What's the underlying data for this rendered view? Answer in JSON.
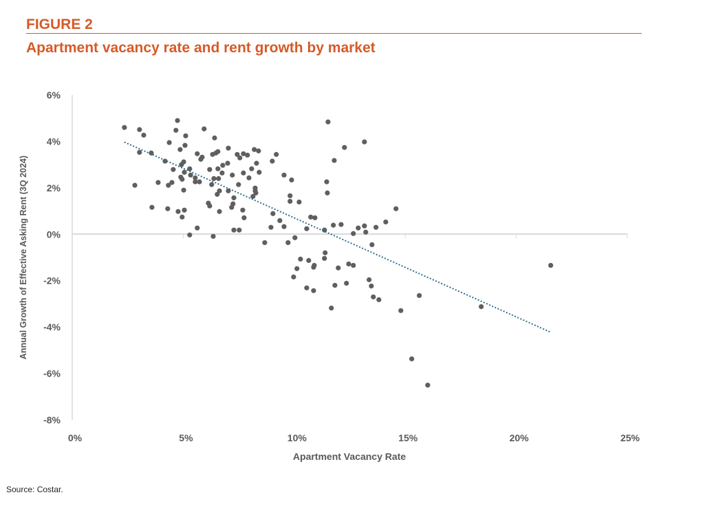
{
  "header": {
    "figure_label": "FIGURE 2",
    "title": "Apartment vacancy rate and rent growth by market",
    "accent_color": "#d65a28"
  },
  "source": "Source: Costar.",
  "chart_data": {
    "type": "scatter",
    "title": "",
    "xlabel": "Apartment Vacancy Rate",
    "ylabel": "Annual Growth of Effective Asking Rent (3Q 2024)",
    "xlim": [
      0,
      25
    ],
    "ylim": [
      -8,
      6
    ],
    "x_ticks": [
      "0%",
      "5%",
      "10%",
      "15%",
      "20%",
      "25%"
    ],
    "y_ticks": [
      "6%",
      "4%",
      "2%",
      "0%",
      "-2%",
      "-4%",
      "-6%",
      "-8%"
    ],
    "units": "percent",
    "grid": false,
    "legend": "none",
    "marker_color": "#5f5f5f",
    "trendline": {
      "type": "linear",
      "style": "dotted",
      "color": "#2e6e8e"
    },
    "points": [
      [
        2.35,
        4.6
      ],
      [
        3.03,
        4.51
      ],
      [
        3.22,
        4.27
      ],
      [
        4.74,
        4.9
      ],
      [
        4.67,
        4.48
      ],
      [
        5.11,
        4.24
      ],
      [
        5.94,
        4.54
      ],
      [
        6.41,
        4.15
      ],
      [
        4.37,
        3.95
      ],
      [
        5.08,
        3.83
      ],
      [
        4.86,
        3.65
      ],
      [
        3.03,
        3.53
      ],
      [
        3.56,
        3.5
      ],
      [
        4.18,
        3.15
      ],
      [
        5.02,
        3.12
      ],
      [
        4.92,
        3.0
      ],
      [
        5.63,
        3.47
      ],
      [
        5.85,
        3.32
      ],
      [
        5.79,
        3.23
      ],
      [
        6.32,
        3.44
      ],
      [
        6.47,
        3.5
      ],
      [
        6.56,
        3.56
      ],
      [
        6.19,
        2.79
      ],
      [
        6.56,
        2.82
      ],
      [
        5.29,
        2.82
      ],
      [
        4.55,
        2.79
      ],
      [
        5.05,
        2.67
      ],
      [
        4.89,
        2.46
      ],
      [
        4.95,
        2.37
      ],
      [
        5.33,
        2.55
      ],
      [
        5.54,
        2.43
      ],
      [
        5.54,
        2.26
      ],
      [
        5.73,
        2.26
      ],
      [
        6.38,
        2.4
      ],
      [
        6.59,
        2.4
      ],
      [
        6.28,
        2.14
      ],
      [
        2.82,
        2.11
      ],
      [
        3.87,
        2.23
      ],
      [
        4.33,
        2.11
      ],
      [
        4.49,
        2.23
      ],
      [
        5.02,
        1.9
      ],
      [
        6.53,
        1.72
      ],
      [
        6.63,
        1.87
      ],
      [
        3.59,
        1.16
      ],
      [
        4.3,
        1.1
      ],
      [
        4.77,
        0.98
      ],
      [
        5.05,
        1.04
      ],
      [
        4.95,
        0.74
      ],
      [
        6.13,
        1.34
      ],
      [
        6.19,
        1.22
      ],
      [
        6.63,
        0.98
      ],
      [
        5.63,
        0.27
      ],
      [
        5.29,
        -0.03
      ],
      [
        6.35,
        -0.09
      ],
      [
        6.75,
        2.64
      ],
      [
        6.78,
        2.97
      ],
      [
        7.0,
        3.06
      ],
      [
        7.03,
        3.71
      ],
      [
        7.43,
        3.44
      ],
      [
        7.55,
        3.29
      ],
      [
        7.71,
        3.47
      ],
      [
        7.89,
        3.41
      ],
      [
        8.2,
        3.65
      ],
      [
        8.39,
        3.59
      ],
      [
        9.19,
        3.44
      ],
      [
        9.01,
        3.15
      ],
      [
        7.21,
        2.55
      ],
      [
        7.71,
        2.64
      ],
      [
        8.08,
        2.82
      ],
      [
        8.3,
        3.06
      ],
      [
        8.42,
        2.67
      ],
      [
        7.96,
        2.43
      ],
      [
        7.49,
        2.14
      ],
      [
        9.54,
        2.55
      ],
      [
        9.88,
        2.34
      ],
      [
        8.24,
        1.99
      ],
      [
        8.24,
        1.87
      ],
      [
        8.27,
        1.78
      ],
      [
        7.03,
        1.87
      ],
      [
        7.28,
        1.57
      ],
      [
        7.24,
        1.31
      ],
      [
        7.18,
        1.16
      ],
      [
        8.14,
        1.63
      ],
      [
        7.68,
        1.04
      ],
      [
        7.74,
        0.71
      ],
      [
        9.81,
        1.66
      ],
      [
        9.81,
        1.42
      ],
      [
        10.22,
        1.39
      ],
      [
        9.04,
        0.89
      ],
      [
        9.35,
        0.59
      ],
      [
        9.54,
        0.33
      ],
      [
        8.95,
        0.3
      ],
      [
        10.74,
        0.74
      ],
      [
        10.93,
        0.71
      ],
      [
        10.56,
        0.24
      ],
      [
        7.28,
        0.18
      ],
      [
        7.52,
        0.18
      ],
      [
        8.67,
        -0.36
      ],
      [
        9.72,
        -0.36
      ],
      [
        10.03,
        -0.15
      ],
      [
        11.52,
        4.84
      ],
      [
        13.16,
        3.98
      ],
      [
        12.26,
        3.74
      ],
      [
        11.8,
        3.18
      ],
      [
        11.46,
        2.26
      ],
      [
        11.49,
        1.78
      ],
      [
        14.58,
        1.1
      ],
      [
        11.36,
        0.18
      ],
      [
        11.76,
        0.39
      ],
      [
        12.11,
        0.42
      ],
      [
        12.88,
        0.27
      ],
      [
        13.16,
        0.36
      ],
      [
        13.22,
        0.09
      ],
      [
        13.68,
        0.3
      ],
      [
        14.12,
        0.53
      ],
      [
        12.66,
        0.03
      ],
      [
        13.5,
        -0.45
      ],
      [
        11.39,
        -0.8
      ],
      [
        11.36,
        -1.04
      ],
      [
        10.28,
        -1.07
      ],
      [
        10.65,
        -1.13
      ],
      [
        10.9,
        -1.34
      ],
      [
        10.87,
        -1.42
      ],
      [
        10.12,
        -1.48
      ],
      [
        11.98,
        -1.45
      ],
      [
        12.45,
        -1.28
      ],
      [
        12.66,
        -1.34
      ],
      [
        9.97,
        -1.84
      ],
      [
        13.37,
        -1.96
      ],
      [
        13.47,
        -2.23
      ],
      [
        10.56,
        -2.31
      ],
      [
        10.87,
        -2.43
      ],
      [
        11.83,
        -2.2
      ],
      [
        12.35,
        -2.11
      ],
      [
        13.56,
        -2.7
      ],
      [
        13.81,
        -2.82
      ],
      [
        14.8,
        -3.29
      ],
      [
        15.63,
        -2.64
      ],
      [
        11.67,
        -3.18
      ],
      [
        15.29,
        -5.37
      ],
      [
        16.01,
        -6.5
      ],
      [
        18.42,
        -3.12
      ],
      [
        21.55,
        -1.34
      ]
    ]
  }
}
